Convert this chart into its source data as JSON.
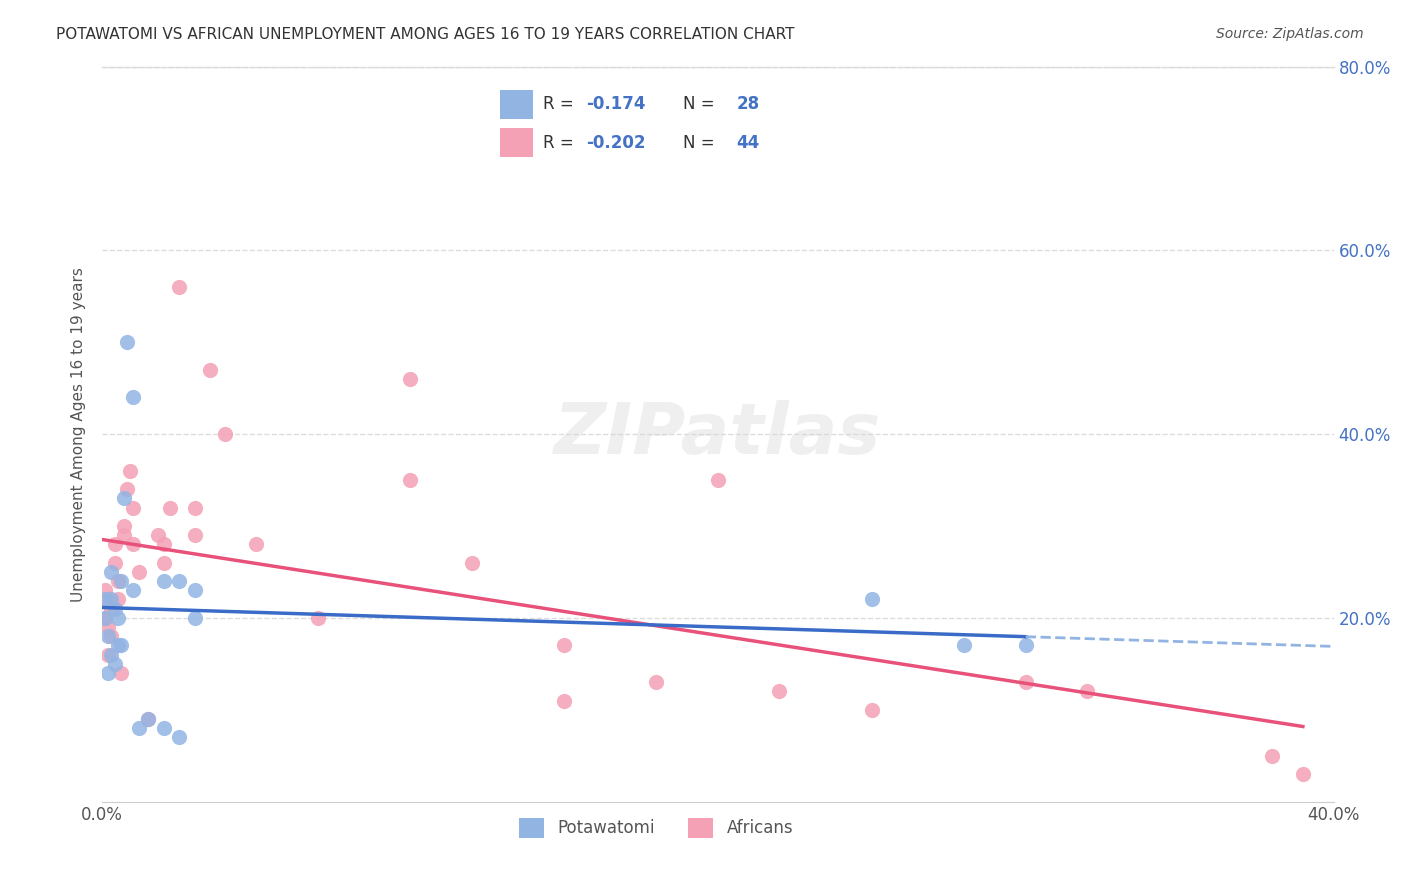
{
  "title": "POTAWATOMI VS AFRICAN UNEMPLOYMENT AMONG AGES 16 TO 19 YEARS CORRELATION CHART",
  "source": "Source: ZipAtlas.com",
  "ylabel": "Unemployment Among Ages 16 to 19 years",
  "xlim": [
    0.0,
    0.4
  ],
  "ylim": [
    0.0,
    0.8
  ],
  "legend_R": [
    "-0.174",
    "-0.202"
  ],
  "legend_N": [
    "28",
    "44"
  ],
  "blue_color": "#92b4e3",
  "pink_color": "#f4a0b5",
  "trend_blue": "#3a6bc7",
  "trend_pink": "#e8527a",
  "trend_blue_dash": "#92b4e3",
  "potawatomi_x": [
    0.001,
    0.001,
    0.002,
    0.002,
    0.003,
    0.003,
    0.003,
    0.004,
    0.004,
    0.005,
    0.005,
    0.006,
    0.006,
    0.007,
    0.008,
    0.01,
    0.01,
    0.012,
    0.015,
    0.02,
    0.02,
    0.025,
    0.025,
    0.03,
    0.03,
    0.25,
    0.28,
    0.3
  ],
  "potawatomi_y": [
    0.2,
    0.22,
    0.14,
    0.18,
    0.16,
    0.22,
    0.25,
    0.15,
    0.21,
    0.17,
    0.2,
    0.17,
    0.24,
    0.33,
    0.5,
    0.23,
    0.44,
    0.08,
    0.09,
    0.24,
    0.08,
    0.07,
    0.24,
    0.2,
    0.23,
    0.22,
    0.17,
    0.17
  ],
  "africans_x": [
    0.001,
    0.001,
    0.002,
    0.002,
    0.002,
    0.003,
    0.003,
    0.004,
    0.004,
    0.005,
    0.005,
    0.006,
    0.007,
    0.007,
    0.008,
    0.009,
    0.01,
    0.01,
    0.012,
    0.015,
    0.018,
    0.02,
    0.02,
    0.022,
    0.025,
    0.03,
    0.03,
    0.035,
    0.04,
    0.05,
    0.07,
    0.1,
    0.1,
    0.12,
    0.15,
    0.15,
    0.18,
    0.2,
    0.22,
    0.25,
    0.3,
    0.32,
    0.38,
    0.39
  ],
  "africans_y": [
    0.2,
    0.23,
    0.16,
    0.19,
    0.22,
    0.18,
    0.21,
    0.26,
    0.28,
    0.22,
    0.24,
    0.14,
    0.29,
    0.3,
    0.34,
    0.36,
    0.28,
    0.32,
    0.25,
    0.09,
    0.29,
    0.26,
    0.28,
    0.32,
    0.56,
    0.29,
    0.32,
    0.47,
    0.4,
    0.28,
    0.2,
    0.35,
    0.46,
    0.26,
    0.17,
    0.11,
    0.13,
    0.35,
    0.12,
    0.1,
    0.13,
    0.12,
    0.05,
    0.03
  ],
  "watermark": "ZIPatlas",
  "background_color": "#ffffff",
  "grid_color": "#dddddd"
}
